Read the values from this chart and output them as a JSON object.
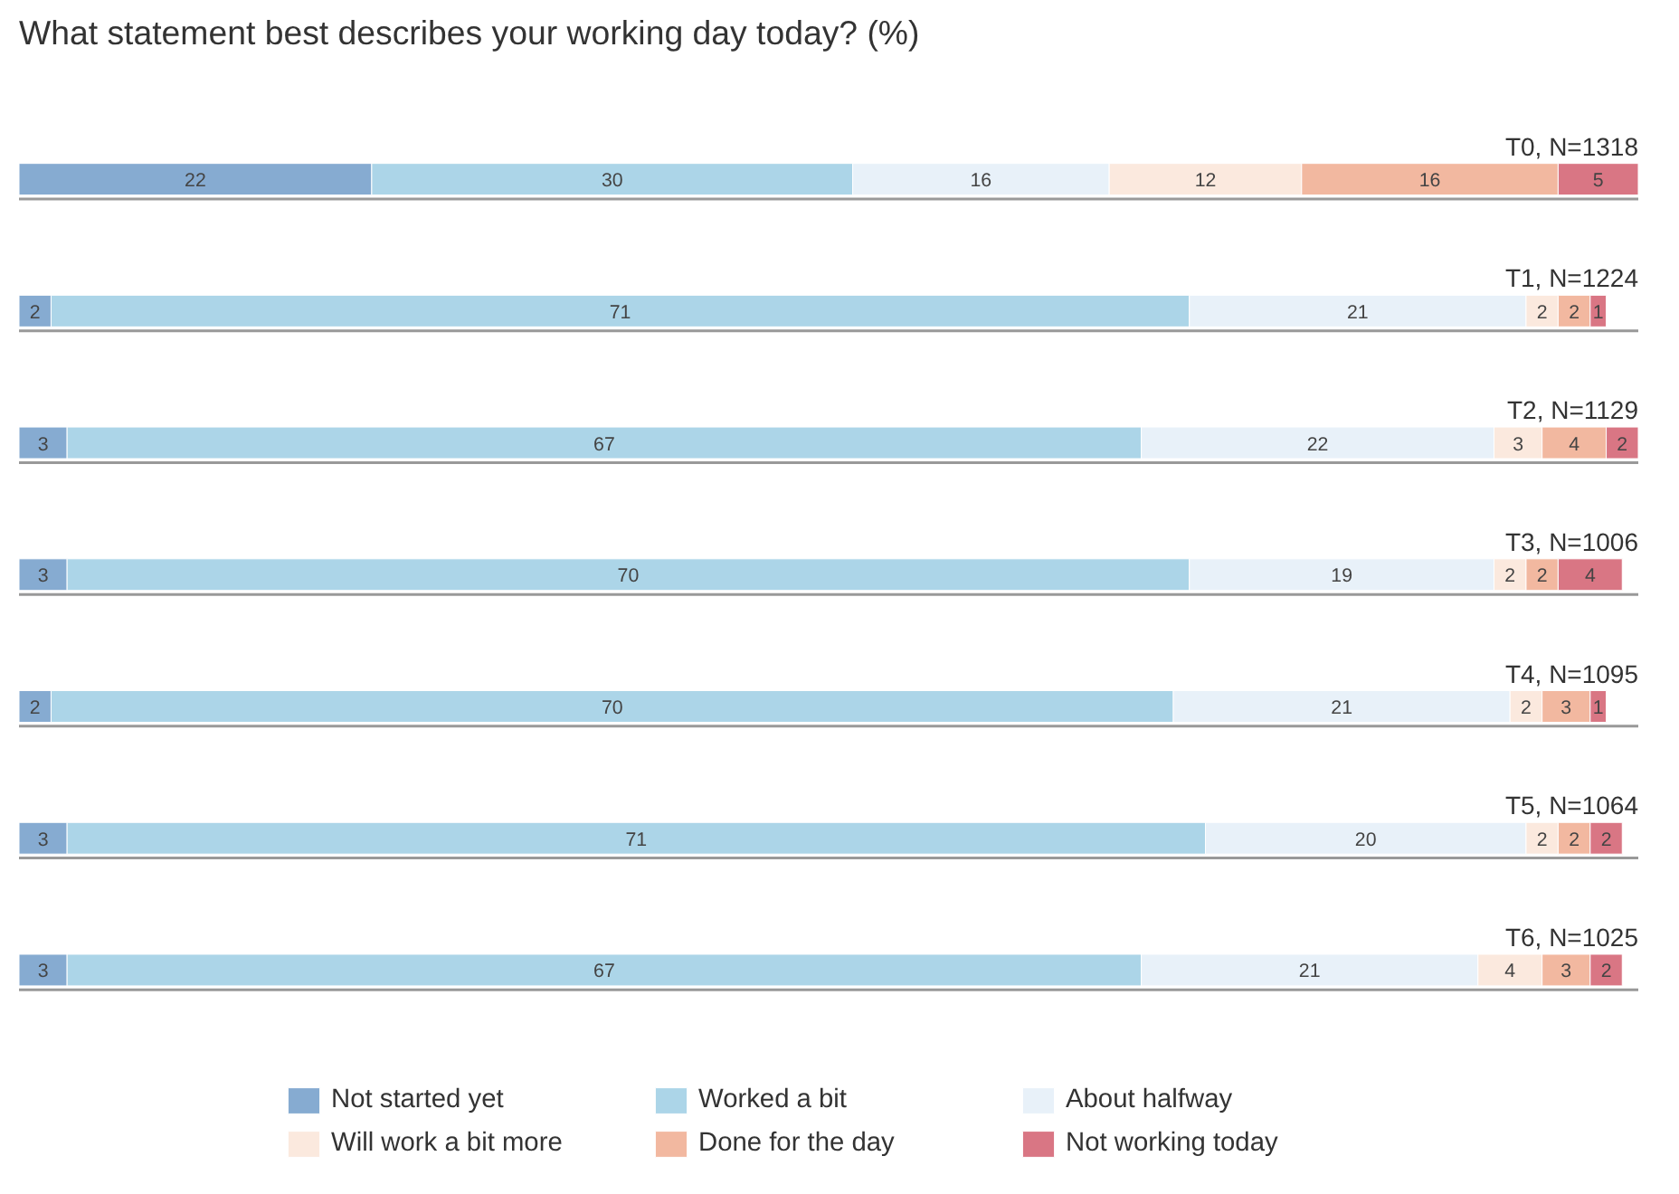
{
  "chart_data": {
    "type": "bar",
    "orientation": "horizontal",
    "stacked": true,
    "title": "What statement best describes your working day today? (%)",
    "categories": [
      "T0, N=1318",
      "T1, N=1224",
      "T2, N=1129",
      "T3, N=1006",
      "T4, N=1095",
      "T5, N=1064",
      "T6, N=1025"
    ],
    "series": [
      {
        "name": "Not started yet",
        "color": "#86abd1",
        "values": [
          22,
          2,
          3,
          3,
          2,
          3,
          3
        ]
      },
      {
        "name": "Worked a bit",
        "color": "#acd5e8",
        "values": [
          30,
          71,
          67,
          70,
          70,
          71,
          67
        ]
      },
      {
        "name": "About halfway",
        "color": "#e8f1f9",
        "values": [
          16,
          21,
          22,
          19,
          21,
          20,
          21
        ]
      },
      {
        "name": "Will work a bit more",
        "color": "#fbe9de",
        "values": [
          12,
          2,
          3,
          2,
          2,
          2,
          4
        ]
      },
      {
        "name": "Done for the day",
        "color": "#f2b8a0",
        "values": [
          16,
          2,
          4,
          2,
          3,
          2,
          3
        ]
      },
      {
        "name": "Not working today",
        "color": "#d97684",
        "values": [
          5,
          1,
          2,
          4,
          1,
          2,
          2
        ]
      }
    ],
    "data_labels": true,
    "legend": "bottom",
    "grid": false
  }
}
